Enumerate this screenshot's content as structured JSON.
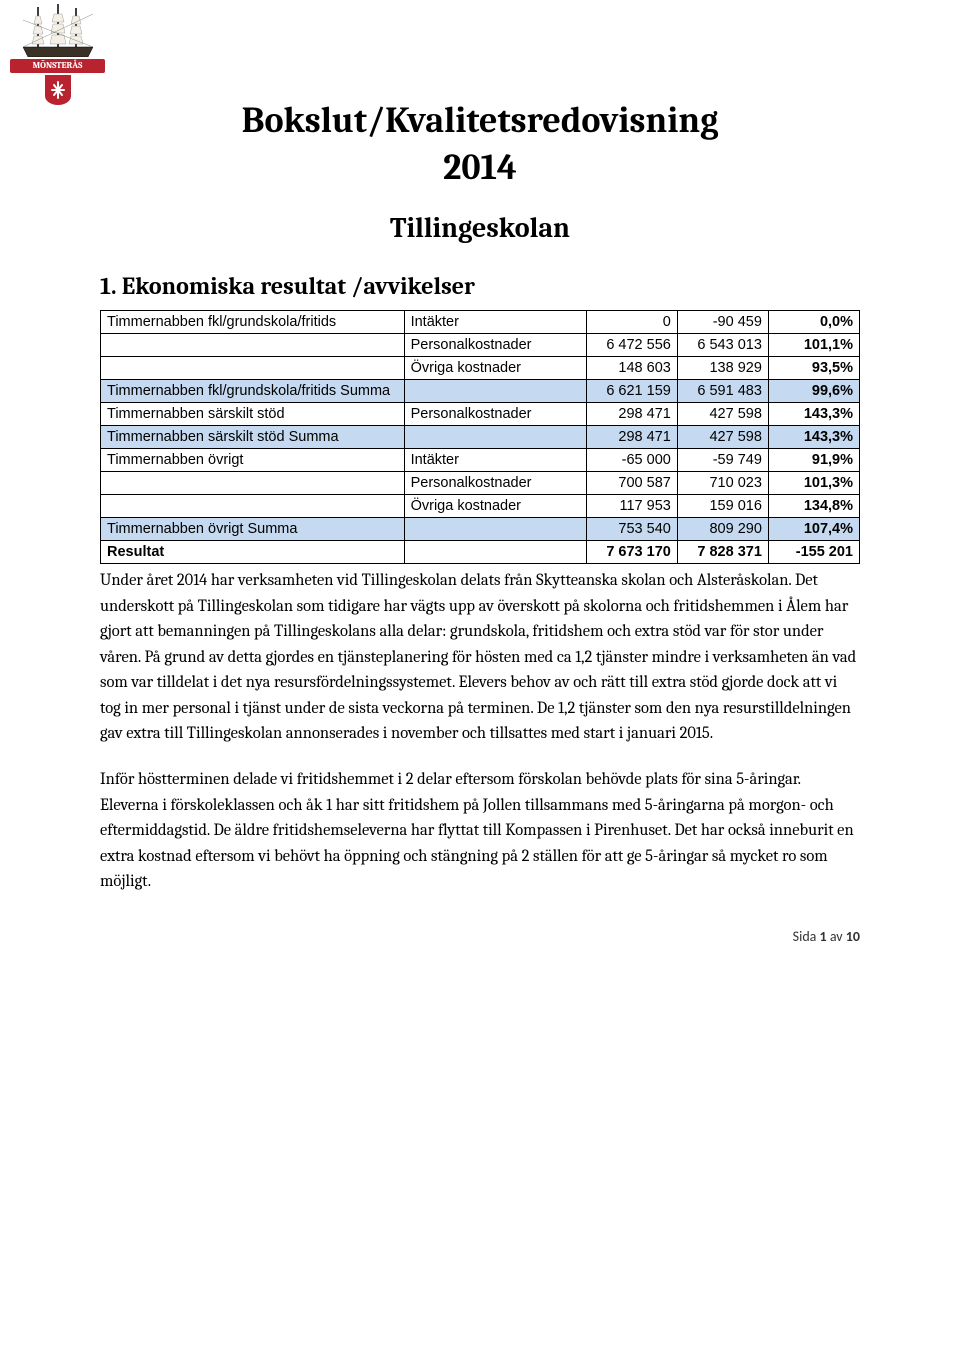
{
  "logo": {
    "banner_text": "MÖNSTERÅS",
    "banner_bg": "#b8232f",
    "shield_bg": "#b8232f"
  },
  "title": "Bokslut/Kvalitetsredovisning",
  "year": "2014",
  "subtitle": "Tillingeskolan",
  "section1_heading": "1. Ekonomiska resultat /avvikelser",
  "table": {
    "colors": {
      "summa_bg": "#c5d9f0",
      "border": "#000000",
      "text": "#000000"
    },
    "col_widths": [
      "40%",
      "24%",
      "12%",
      "12%",
      "12%"
    ],
    "rows": [
      {
        "type": "data",
        "c0": "Timmernabben fkl/grundskola/fritids",
        "c1": "Intäkter",
        "c2": "0",
        "c3": "-90 459",
        "c4": "0,0%"
      },
      {
        "type": "data",
        "c0": "",
        "c1": "Personalkostnader",
        "c2": "6 472 556",
        "c3": "6 543 013",
        "c4": "101,1%"
      },
      {
        "type": "data",
        "c0": "",
        "c1": "Övriga kostnader",
        "c2": "148 603",
        "c3": "138 929",
        "c4": "93,5%"
      },
      {
        "type": "summa",
        "c0": "Timmernabben fkl/grundskola/fritids Summa",
        "c1": "",
        "c2": "6 621 159",
        "c3": "6 591 483",
        "c4": "99,6%"
      },
      {
        "type": "data",
        "c0": "Timmernabben särskilt stöd",
        "c1": "Personalkostnader",
        "c2": "298 471",
        "c3": "427 598",
        "c4": "143,3%"
      },
      {
        "type": "summa",
        "c0": "Timmernabben särskilt stöd Summa",
        "c1": "",
        "c2": "298 471",
        "c3": "427 598",
        "c4": "143,3%"
      },
      {
        "type": "data",
        "c0": "Timmernabben övrigt",
        "c1": "Intäkter",
        "c2": "-65 000",
        "c3": "-59 749",
        "c4": "91,9%"
      },
      {
        "type": "data",
        "c0": "",
        "c1": "Personalkostnader",
        "c2": "700 587",
        "c3": "710 023",
        "c4": "101,3%"
      },
      {
        "type": "data",
        "c0": "",
        "c1": "Övriga kostnader",
        "c2": "117 953",
        "c3": "159 016",
        "c4": "134,8%"
      },
      {
        "type": "summa",
        "c0": "Timmernabben övrigt Summa",
        "c1": "",
        "c2": "753 540",
        "c3": "809 290",
        "c4": "107,4%"
      },
      {
        "type": "resultat",
        "c0": "Resultat",
        "c1": "",
        "c2": "7 673 170",
        "c3": "7 828 371",
        "c4": "-155 201"
      }
    ]
  },
  "para1": "Under året 2014 har verksamheten vid Tillingeskolan delats från Skytteanska skolan och Alsteråskolan. Det underskott på Tillingeskolan som tidigare har vägts upp av överskott på skolorna och fritidshemmen i Ålem har gjort att bemanningen på Tillingeskolans alla delar: grundskola, fritidshem och extra stöd var för stor under våren. På grund av detta gjordes en tjänsteplanering för hösten med ca 1,2 tjänster mindre i verksamheten än vad som var tilldelat i det nya resursfördelningssystemet. Elevers behov av och rätt till extra stöd gjorde dock att vi tog in mer personal i tjänst under de sista veckorna på terminen. De 1,2 tjänster som den nya resurstilldelningen gav extra till Tillingeskolan annonserades i november och tillsattes med start i januari 2015.",
  "para2": "Inför höstterminen delade vi fritidshemmet i 2 delar eftersom förskolan behövde plats för sina 5-åringar. Eleverna i förskoleklassen och åk 1 har sitt fritidshem på Jollen tillsammans med 5-åringarna på morgon- och eftermiddagstid. De äldre fritidshemseleverna har flyttat till Kompassen i Pirenhuset. Det har också inneburit en extra kostnad eftersom vi behövt ha öppning och stängning på 2 ställen för att ge 5-åringar så mycket ro som möjligt.",
  "footer": {
    "prefix": "Sida ",
    "page": "1",
    "sep": " av ",
    "total": "10"
  }
}
